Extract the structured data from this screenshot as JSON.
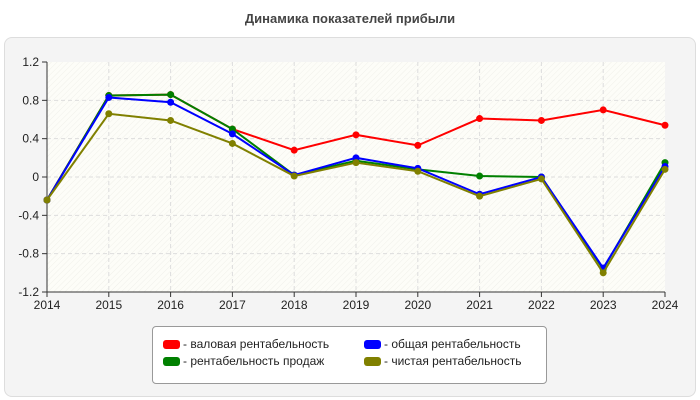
{
  "chart_data": {
    "type": "line",
    "title": "Динамика показателей прибыли",
    "x": [
      2014,
      2015,
      2016,
      2017,
      2018,
      2019,
      2020,
      2021,
      2022,
      2023,
      2024
    ],
    "ylim": [
      -1.2,
      1.2
    ],
    "yticks": [
      "1.2",
      "0.8",
      "0.4",
      "0",
      "-0.4",
      "-0.8",
      "-1.2"
    ],
    "xticks": [
      "2014",
      "2015",
      "2016",
      "2017",
      "2018",
      "2019",
      "2020",
      "2021",
      "2022",
      "2023",
      "2024"
    ],
    "grid": true,
    "legend_position": "bottom",
    "series": [
      {
        "name": "- валовая рентабельность",
        "color": "#ff0000",
        "values": [
          -0.24,
          0.85,
          0.86,
          0.5,
          0.28,
          0.44,
          0.33,
          0.61,
          0.59,
          0.7,
          0.54
        ]
      },
      {
        "name": "- рентабельность продаж",
        "color": "#008000",
        "values": [
          -0.24,
          0.85,
          0.86,
          0.5,
          0.02,
          0.17,
          0.08,
          0.01,
          0.0,
          -0.96,
          0.15
        ]
      },
      {
        "name": "- общая рентабельность",
        "color": "#0000ff",
        "values": [
          -0.24,
          0.83,
          0.78,
          0.45,
          0.02,
          0.2,
          0.09,
          -0.18,
          0.0,
          -0.95,
          0.11
        ]
      },
      {
        "name": "- чистая рентабельность",
        "color": "#808000",
        "values": [
          -0.24,
          0.66,
          0.59,
          0.35,
          0.01,
          0.15,
          0.06,
          -0.2,
          -0.02,
          -1.0,
          0.08
        ]
      }
    ]
  }
}
